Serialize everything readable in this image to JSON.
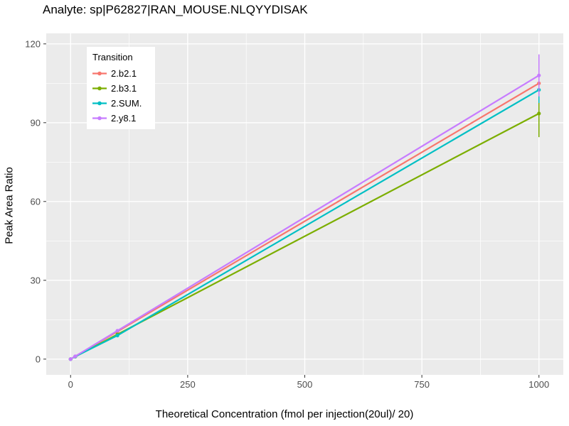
{
  "chart_data": {
    "type": "line",
    "title": "Analyte: sp|P62827|RAN_MOUSE.NLQYYDISAK",
    "xlabel": "Theoretical Concentration (fmol per injection(20ul)/ 20)",
    "ylabel": "Peak Area Ratio",
    "legend_title": "Transition",
    "legend_position": "top-left-inside",
    "grid": true,
    "panel_bg": "#EBEBEB",
    "grid_color": "#FFFFFF",
    "tick_label_color": "#4d4d4d",
    "tick_mark_color": "#333333",
    "x": [
      0,
      10,
      100,
      1000
    ],
    "xticks": [
      0,
      250,
      500,
      750,
      1000
    ],
    "yticks": [
      0,
      30,
      60,
      90,
      120
    ],
    "xlim": [
      -52,
      1052
    ],
    "ylim": [
      -6,
      124
    ],
    "series": [
      {
        "name": "2.b2.1",
        "color": "#F8766D",
        "values": [
          0,
          1.05,
          10.5,
          105.0
        ],
        "yerr_end": 4
      },
      {
        "name": "2.b3.1",
        "color": "#7CAE00",
        "values": [
          0,
          0.94,
          9.4,
          93.5
        ],
        "yerr_end": 9
      },
      {
        "name": "2.SUM.",
        "color": "#00BFC4",
        "values": [
          0,
          1.0,
          9.0,
          102.5
        ],
        "yerr_end": 5
      },
      {
        "name": "2.y8.1",
        "color": "#C77CFF",
        "values": [
          0,
          1.08,
          10.8,
          108.0
        ],
        "yerr_end": 8
      }
    ]
  }
}
